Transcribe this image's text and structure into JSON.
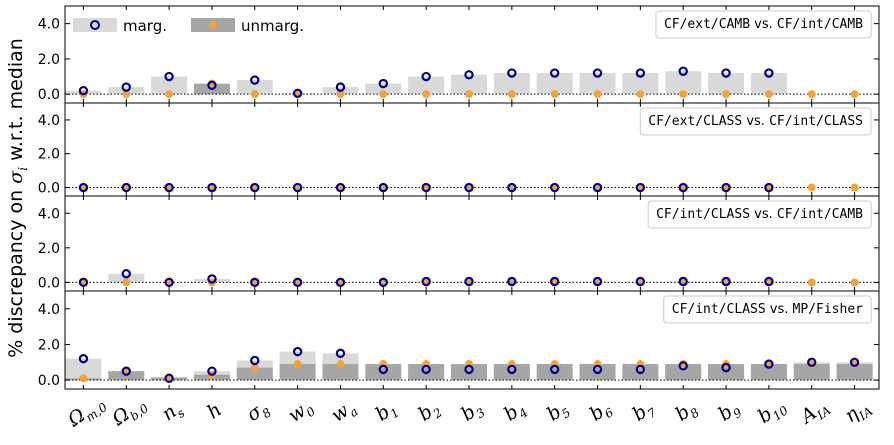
{
  "chart_data": {
    "type": "bar",
    "ylabel_prefix": "% discrepancy on ",
    "ylabel_sigma": "σ",
    "ylabel_sub": "i",
    "ylabel_suffix": " w.r.t. median",
    "ylim": [
      -0.5,
      5.0
    ],
    "yticks": [
      "0.0",
      "2.0",
      "4.0"
    ],
    "ytick_values": [
      0.0,
      2.0,
      4.0
    ],
    "legend": {
      "marg": "marg.",
      "unmarg": "unmarg.",
      "placement": "top-left"
    },
    "colors": {
      "marg_bar": "#d9d9d9",
      "unmarg_bar": "#a6a6a6",
      "marg_marker": "#00008b",
      "unmarg_marker": "#f4a23c"
    },
    "categories": [
      {
        "base": "Ω",
        "sub": "m,0"
      },
      {
        "base": "Ω",
        "sub": "b,0"
      },
      {
        "base": "n",
        "sub": "s"
      },
      {
        "base": "h",
        "sub": ""
      },
      {
        "base": "σ",
        "sub": "8"
      },
      {
        "base": "w",
        "sub": "0"
      },
      {
        "base": "w",
        "sub": "a"
      },
      {
        "base": "b",
        "sub": "1"
      },
      {
        "base": "b",
        "sub": "2"
      },
      {
        "base": "b",
        "sub": "3"
      },
      {
        "base": "b",
        "sub": "4"
      },
      {
        "base": "b",
        "sub": "5"
      },
      {
        "base": "b",
        "sub": "6"
      },
      {
        "base": "b",
        "sub": "7"
      },
      {
        "base": "b",
        "sub": "8"
      },
      {
        "base": "b",
        "sub": "9"
      },
      {
        "base": "b",
        "sub": "10"
      },
      {
        "base": "A",
        "sub": "IA"
      },
      {
        "base": "η",
        "sub": "IA"
      }
    ],
    "panels": [
      {
        "title_a": "CF/ext/CAMB",
        "title_vs": " vs. ",
        "title_b": "CF/int/CAMB",
        "marg": [
          0.2,
          0.4,
          1.0,
          0.5,
          0.8,
          0.05,
          0.4,
          0.6,
          1.0,
          1.1,
          1.2,
          1.2,
          1.2,
          1.2,
          1.3,
          1.2,
          1.2,
          null,
          null
        ],
        "unmarg": [
          0.0,
          0.0,
          0.0,
          0.6,
          0.0,
          0.0,
          0.0,
          0.0,
          0.0,
          0.0,
          0.0,
          0.0,
          0.0,
          0.0,
          0.0,
          0.0,
          0.0,
          0.0,
          0.0
        ]
      },
      {
        "title_a": "CF/ext/CLASS",
        "title_vs": " vs. ",
        "title_b": "CF/int/CLASS",
        "marg": [
          0.0,
          0.0,
          0.0,
          0.0,
          0.0,
          0.0,
          0.0,
          0.0,
          0.0,
          0.0,
          0.0,
          0.0,
          0.0,
          0.0,
          0.0,
          0.0,
          0.0,
          null,
          null
        ],
        "unmarg": [
          0.0,
          0.0,
          0.0,
          0.0,
          0.0,
          0.0,
          0.0,
          0.0,
          0.0,
          0.0,
          0.0,
          0.0,
          0.0,
          0.0,
          0.0,
          0.0,
          0.0,
          0.0,
          0.0
        ]
      },
      {
        "title_a": "CF/int/CLASS",
        "title_vs": " vs. ",
        "title_b": "CF/int/CAMB",
        "marg": [
          0.0,
          0.5,
          0.0,
          0.2,
          0.0,
          0.0,
          0.0,
          0.0,
          0.05,
          0.05,
          0.05,
          0.05,
          0.05,
          0.05,
          0.05,
          0.05,
          0.05,
          null,
          null
        ],
        "unmarg": [
          0.0,
          0.0,
          0.0,
          0.0,
          0.0,
          0.0,
          0.0,
          0.0,
          0.0,
          0.0,
          0.0,
          0.0,
          0.0,
          0.0,
          0.0,
          0.0,
          0.0,
          0.0,
          0.0
        ]
      },
      {
        "title_a": "CF/int/CLASS",
        "title_vs": " vs. ",
        "title_b": "MP/Fisher",
        "marg": [
          1.2,
          0.5,
          0.1,
          0.5,
          1.1,
          1.6,
          1.5,
          0.6,
          0.6,
          0.6,
          0.6,
          0.6,
          0.6,
          0.6,
          0.8,
          0.7,
          0.9,
          1.0,
          1.0
        ],
        "unmarg": [
          0.1,
          0.5,
          0.15,
          0.3,
          0.7,
          0.9,
          0.9,
          0.9,
          0.9,
          0.9,
          0.9,
          0.9,
          0.9,
          0.9,
          0.9,
          0.9,
          0.9,
          0.9,
          0.9
        ]
      }
    ]
  }
}
